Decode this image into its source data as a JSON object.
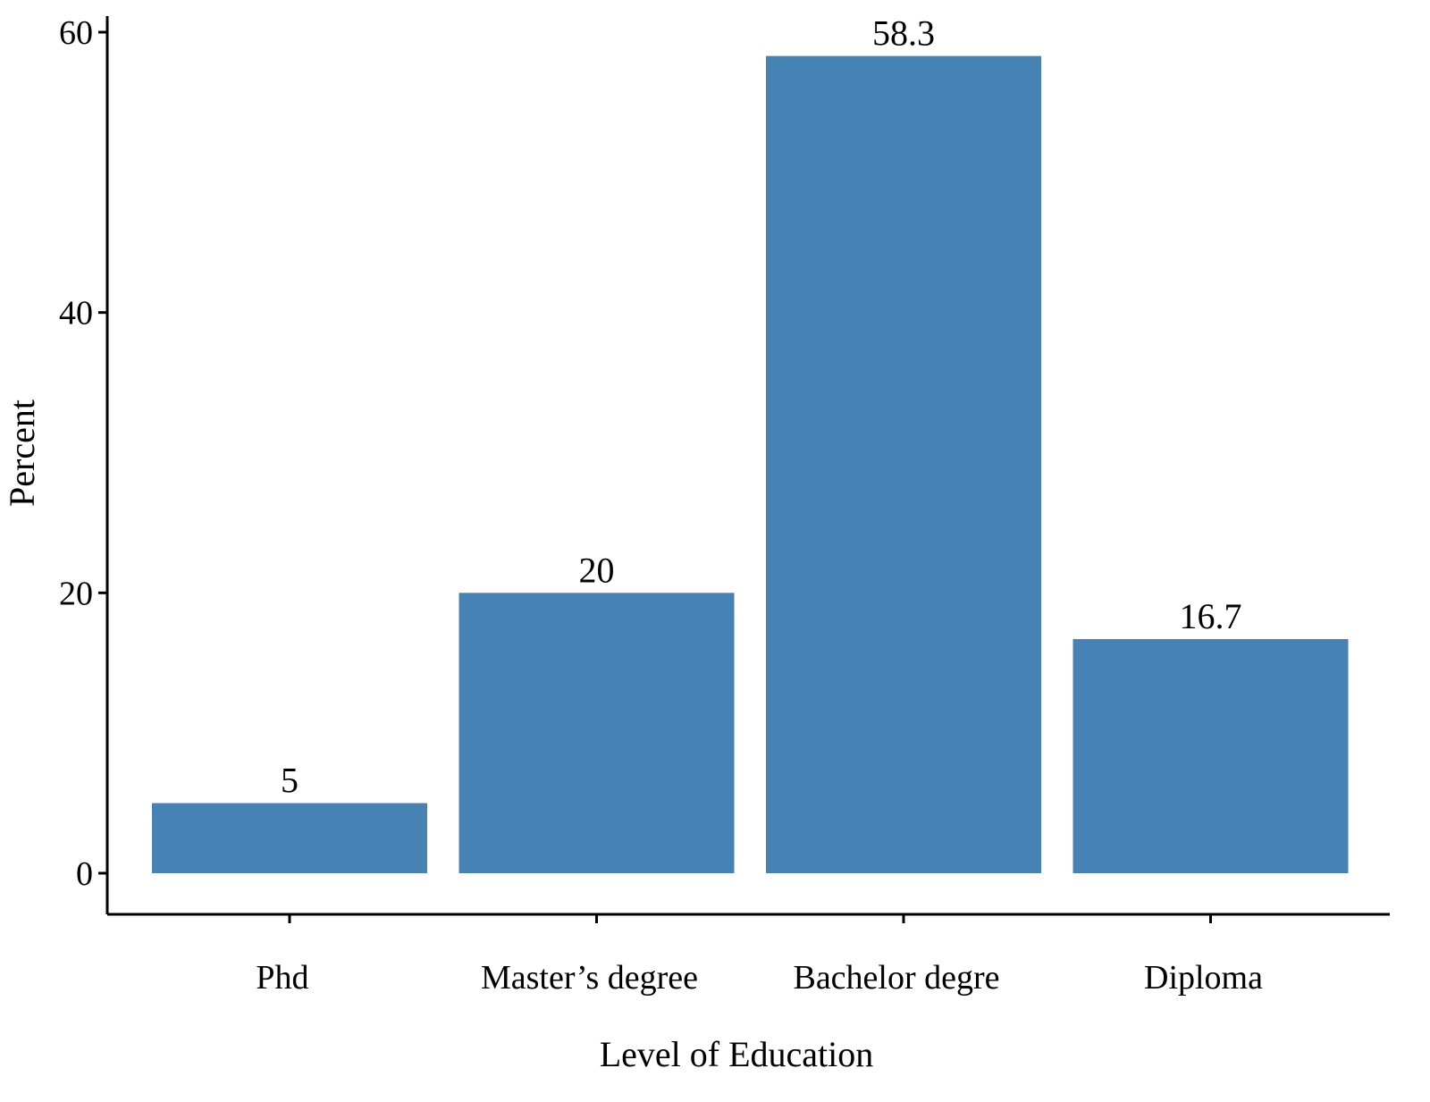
{
  "chart_data": {
    "type": "bar",
    "categories": [
      "Phd",
      "Master’s degree",
      "Bachelor degre",
      "Diploma"
    ],
    "values": [
      5,
      20,
      58.3,
      16.7
    ],
    "data_labels": [
      "5",
      "20",
      "58.3",
      "16.7"
    ],
    "title": "",
    "xlabel": "Level of Education",
    "ylabel": "Percent",
    "ylim": [
      0,
      60
    ],
    "yticks": [
      0,
      20,
      40,
      60
    ],
    "grid": false,
    "legend": "none",
    "bar_color": "#4682b4"
  }
}
